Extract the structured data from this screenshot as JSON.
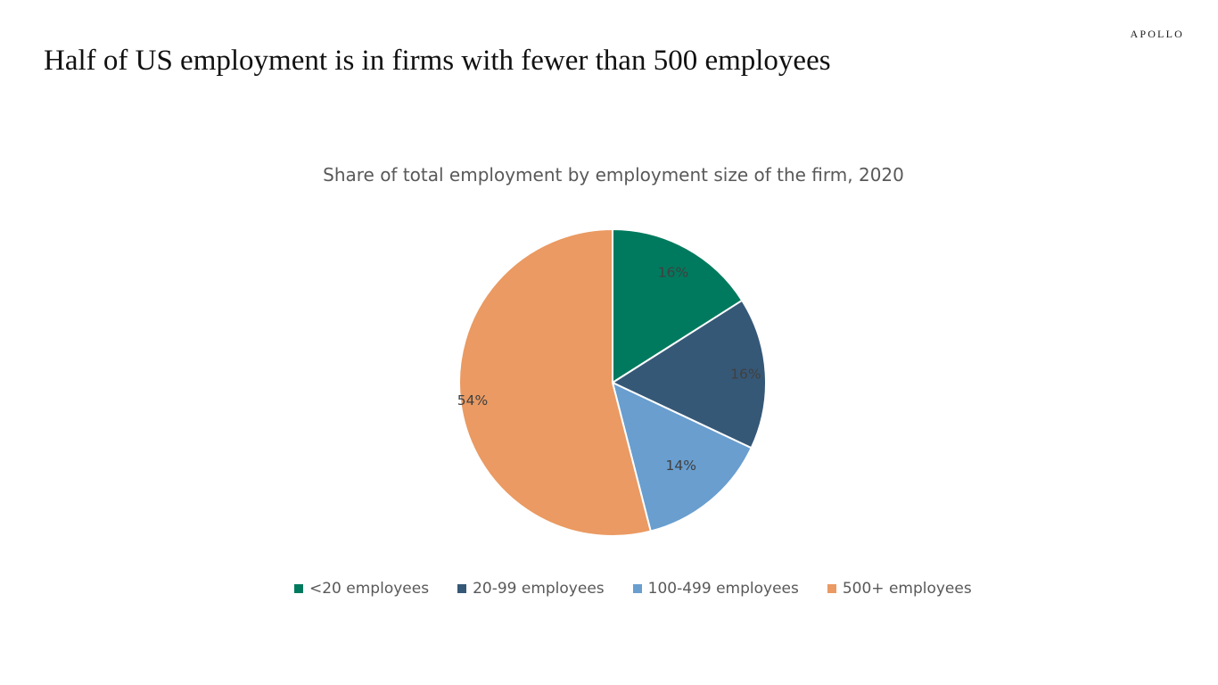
{
  "brand": "APOLLO",
  "page_title": "Half of US employment is in firms with fewer than 500 employees",
  "chart_data": {
    "type": "pie",
    "title": "Share of total employment by employment size of the firm, 2020",
    "categories": [
      "<20 employees",
      "20-99 employees",
      "100-499 employees",
      "500+ employees"
    ],
    "values": [
      16,
      16,
      14,
      54
    ],
    "labels": [
      "16%",
      "16%",
      "14%",
      "54%"
    ],
    "colors": [
      "#007A5E",
      "#365877",
      "#699ECF",
      "#EA9A62"
    ],
    "start_angle_deg": 0,
    "direction": "clockwise",
    "legend": "bottom"
  }
}
